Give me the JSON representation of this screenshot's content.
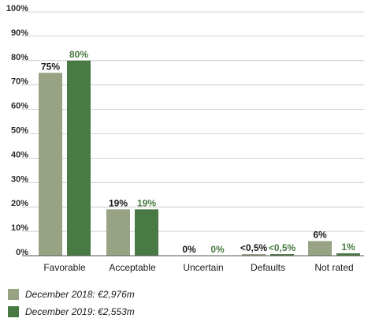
{
  "chart_data": {
    "type": "bar",
    "categories": [
      "Favorable",
      "Acceptable",
      "Uncertain",
      "Defaults",
      "Not rated"
    ],
    "series": [
      {
        "name": "December 2018: €2,976m",
        "values": [
          75,
          19,
          0,
          0.5,
          6
        ],
        "labels": [
          "75%",
          "19%",
          "0%",
          "<0,5%",
          "6%"
        ],
        "color": "#97a383",
        "label_color": "#1a1a1a"
      },
      {
        "name": "December 2019: €2,553m",
        "values": [
          80,
          19,
          0,
          0.5,
          1
        ],
        "labels": [
          "80%",
          "19%",
          "0%",
          "<0,5%",
          "1%"
        ],
        "color": "#4a7a43",
        "label_color": "#4a7a43"
      }
    ],
    "ylim": [
      0,
      100
    ],
    "yticks": [
      "0%",
      "10%",
      "20%",
      "30%",
      "40%",
      "50%",
      "60%",
      "70%",
      "80%",
      "90%",
      "100%"
    ],
    "grid": true,
    "legend_placement": "bottom-left"
  }
}
